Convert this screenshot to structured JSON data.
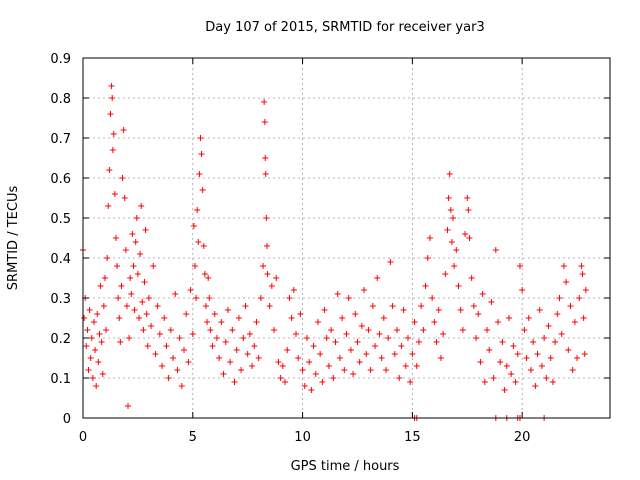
{
  "chart_data": {
    "type": "scatter",
    "title": "Day 107 of 2015, SRMTID for receiver yar3",
    "xlabel": "GPS time / hours",
    "ylabel": "SRMTID / TECUs",
    "xlim": [
      0,
      24
    ],
    "ylim": [
      0,
      0.9
    ],
    "xticks": [
      0,
      5,
      10,
      15,
      20
    ],
    "xtick_labels": [
      "0",
      "5",
      "10",
      "15",
      "20"
    ],
    "yticks": [
      0,
      0.1,
      0.2,
      0.3,
      0.4,
      0.5,
      0.6,
      0.7,
      0.8,
      0.9
    ],
    "ytick_labels": [
      "0",
      "0.1",
      "0.2",
      "0.3",
      "0.4",
      "0.5",
      "0.6",
      "0.7",
      "0.8",
      "0.9"
    ],
    "grid": true,
    "marker": "+",
    "color": "#ff0000",
    "series": [
      {
        "name": "SRMTID",
        "points": [
          [
            0.0,
            0.42
          ],
          [
            0.05,
            0.25
          ],
          [
            0.1,
            0.3
          ],
          [
            0.15,
            0.18
          ],
          [
            0.2,
            0.22
          ],
          [
            0.25,
            0.12
          ],
          [
            0.3,
            0.27
          ],
          [
            0.35,
            0.15
          ],
          [
            0.4,
            0.2
          ],
          [
            0.45,
            0.1
          ],
          [
            0.5,
            0.24
          ],
          [
            0.55,
            0.17
          ],
          [
            0.6,
            0.08
          ],
          [
            0.65,
            0.26
          ],
          [
            0.7,
            0.14
          ],
          [
            0.75,
            0.21
          ],
          [
            0.8,
            0.33
          ],
          [
            0.85,
            0.19
          ],
          [
            0.9,
            0.11
          ],
          [
            0.95,
            0.28
          ],
          [
            1.0,
            0.35
          ],
          [
            1.05,
            0.22
          ],
          [
            1.1,
            0.4
          ],
          [
            1.15,
            0.53
          ],
          [
            1.2,
            0.62
          ],
          [
            1.25,
            0.76
          ],
          [
            1.3,
            0.83
          ],
          [
            1.33,
            0.8
          ],
          [
            1.36,
            0.67
          ],
          [
            1.4,
            0.71
          ],
          [
            1.45,
            0.56
          ],
          [
            1.5,
            0.45
          ],
          [
            1.55,
            0.38
          ],
          [
            1.6,
            0.3
          ],
          [
            1.65,
            0.25
          ],
          [
            1.7,
            0.19
          ],
          [
            1.75,
            0.33
          ],
          [
            1.8,
            0.6
          ],
          [
            1.85,
            0.72
          ],
          [
            1.9,
            0.55
          ],
          [
            1.95,
            0.42
          ],
          [
            2.0,
            0.28
          ],
          [
            2.05,
            0.03
          ],
          [
            2.1,
            0.2
          ],
          [
            2.15,
            0.35
          ],
          [
            2.2,
            0.31
          ],
          [
            2.25,
            0.46
          ],
          [
            2.3,
            0.38
          ],
          [
            2.35,
            0.27
          ],
          [
            2.4,
            0.44
          ],
          [
            2.45,
            0.5
          ],
          [
            2.5,
            0.36
          ],
          [
            2.55,
            0.25
          ],
          [
            2.6,
            0.41
          ],
          [
            2.65,
            0.53
          ],
          [
            2.7,
            0.29
          ],
          [
            2.75,
            0.22
          ],
          [
            2.8,
            0.34
          ],
          [
            2.85,
            0.47
          ],
          [
            2.9,
            0.26
          ],
          [
            2.95,
            0.18
          ],
          [
            3.0,
            0.3
          ],
          [
            3.1,
            0.23
          ],
          [
            3.2,
            0.38
          ],
          [
            3.3,
            0.16
          ],
          [
            3.4,
            0.28
          ],
          [
            3.5,
            0.21
          ],
          [
            3.6,
            0.13
          ],
          [
            3.7,
            0.25
          ],
          [
            3.8,
            0.18
          ],
          [
            3.9,
            0.1
          ],
          [
            4.0,
            0.22
          ],
          [
            4.1,
            0.15
          ],
          [
            4.2,
            0.31
          ],
          [
            4.3,
            0.12
          ],
          [
            4.4,
            0.2
          ],
          [
            4.5,
            0.08
          ],
          [
            4.6,
            0.17
          ],
          [
            4.7,
            0.26
          ],
          [
            4.8,
            0.14
          ],
          [
            4.9,
            0.32
          ],
          [
            5.0,
            0.21
          ],
          [
            5.05,
            0.48
          ],
          [
            5.1,
            0.38
          ],
          [
            5.15,
            0.3
          ],
          [
            5.2,
            0.52
          ],
          [
            5.25,
            0.44
          ],
          [
            5.3,
            0.61
          ],
          [
            5.35,
            0.7
          ],
          [
            5.4,
            0.66
          ],
          [
            5.45,
            0.57
          ],
          [
            5.5,
            0.43
          ],
          [
            5.55,
            0.36
          ],
          [
            5.6,
            0.28
          ],
          [
            5.65,
            0.24
          ],
          [
            5.7,
            0.35
          ],
          [
            5.75,
            0.3
          ],
          [
            5.8,
            0.22
          ],
          [
            5.9,
            0.18
          ],
          [
            6.0,
            0.26
          ],
          [
            6.1,
            0.2
          ],
          [
            6.2,
            0.15
          ],
          [
            6.3,
            0.24
          ],
          [
            6.4,
            0.11
          ],
          [
            6.5,
            0.19
          ],
          [
            6.6,
            0.27
          ],
          [
            6.7,
            0.14
          ],
          [
            6.8,
            0.22
          ],
          [
            6.9,
            0.09
          ],
          [
            7.0,
            0.17
          ],
          [
            7.1,
            0.25
          ],
          [
            7.2,
            0.12
          ],
          [
            7.3,
            0.2
          ],
          [
            7.4,
            0.28
          ],
          [
            7.5,
            0.16
          ],
          [
            7.6,
            0.21
          ],
          [
            7.7,
            0.13
          ],
          [
            7.8,
            0.18
          ],
          [
            7.9,
            0.24
          ],
          [
            8.0,
            0.15
          ],
          [
            8.1,
            0.3
          ],
          [
            8.2,
            0.38
          ],
          [
            8.25,
            0.79
          ],
          [
            8.28,
            0.74
          ],
          [
            8.3,
            0.65
          ],
          [
            8.32,
            0.61
          ],
          [
            8.35,
            0.5
          ],
          [
            8.38,
            0.43
          ],
          [
            8.4,
            0.36
          ],
          [
            8.5,
            0.28
          ],
          [
            8.6,
            0.33
          ],
          [
            8.7,
            0.22
          ],
          [
            8.8,
            0.35
          ],
          [
            8.9,
            0.14
          ],
          [
            9.0,
            0.1
          ],
          [
            9.1,
            0.13
          ],
          [
            9.2,
            0.09
          ],
          [
            9.3,
            0.17
          ],
          [
            9.4,
            0.3
          ],
          [
            9.5,
            0.25
          ],
          [
            9.6,
            0.32
          ],
          [
            9.7,
            0.21
          ],
          [
            9.8,
            0.15
          ],
          [
            9.9,
            0.26
          ],
          [
            10.0,
            0.12
          ],
          [
            10.1,
            0.08
          ],
          [
            10.2,
            0.2
          ],
          [
            10.3,
            0.14
          ],
          [
            10.4,
            0.07
          ],
          [
            10.5,
            0.18
          ],
          [
            10.6,
            0.11
          ],
          [
            10.7,
            0.24
          ],
          [
            10.8,
            0.16
          ],
          [
            10.9,
            0.09
          ],
          [
            11.0,
            0.27
          ],
          [
            11.1,
            0.2
          ],
          [
            11.2,
            0.13
          ],
          [
            11.3,
            0.22
          ],
          [
            11.4,
            0.1
          ],
          [
            11.5,
            0.19
          ],
          [
            11.6,
            0.31
          ],
          [
            11.7,
            0.15
          ],
          [
            11.8,
            0.25
          ],
          [
            11.9,
            0.12
          ],
          [
            12.0,
            0.21
          ],
          [
            12.1,
            0.3
          ],
          [
            12.2,
            0.17
          ],
          [
            12.3,
            0.11
          ],
          [
            12.4,
            0.26
          ],
          [
            12.5,
            0.19
          ],
          [
            12.6,
            0.14
          ],
          [
            12.7,
            0.23
          ],
          [
            12.8,
            0.32
          ],
          [
            12.9,
            0.16
          ],
          [
            13.0,
            0.22
          ],
          [
            13.1,
            0.12
          ],
          [
            13.2,
            0.28
          ],
          [
            13.3,
            0.18
          ],
          [
            13.4,
            0.35
          ],
          [
            13.5,
            0.21
          ],
          [
            13.6,
            0.15
          ],
          [
            13.7,
            0.25
          ],
          [
            13.8,
            0.12
          ],
          [
            13.9,
            0.2
          ],
          [
            14.0,
            0.39
          ],
          [
            14.1,
            0.28
          ],
          [
            14.2,
            0.16
          ],
          [
            14.3,
            0.22
          ],
          [
            14.4,
            0.1
          ],
          [
            14.5,
            0.18
          ],
          [
            14.6,
            0.27
          ],
          [
            14.7,
            0.13
          ],
          [
            14.8,
            0.2
          ],
          [
            14.9,
            0.09
          ],
          [
            15.0,
            0.16
          ],
          [
            15.1,
            0.24
          ],
          [
            15.2,
            0.13
          ],
          [
            15.3,
            0.19
          ],
          [
            15.4,
            0.28
          ],
          [
            15.5,
            0.22
          ],
          [
            15.6,
            0.33
          ],
          [
            15.7,
            0.4
          ],
          [
            15.8,
            0.45
          ],
          [
            15.9,
            0.3
          ],
          [
            16.0,
            0.24
          ],
          [
            16.1,
            0.19
          ],
          [
            16.2,
            0.27
          ],
          [
            16.3,
            0.15
          ],
          [
            16.4,
            0.21
          ],
          [
            16.5,
            0.36
          ],
          [
            16.6,
            0.47
          ],
          [
            16.65,
            0.55
          ],
          [
            16.7,
            0.61
          ],
          [
            16.75,
            0.52
          ],
          [
            16.8,
            0.44
          ],
          [
            16.85,
            0.5
          ],
          [
            16.9,
            0.38
          ],
          [
            17.0,
            0.42
          ],
          [
            17.1,
            0.33
          ],
          [
            17.2,
            0.27
          ],
          [
            17.3,
            0.22
          ],
          [
            17.4,
            0.46
          ],
          [
            17.5,
            0.55
          ],
          [
            17.55,
            0.52
          ],
          [
            17.6,
            0.45
          ],
          [
            17.7,
            0.35
          ],
          [
            17.8,
            0.28
          ],
          [
            17.9,
            0.2
          ],
          [
            18.0,
            0.26
          ],
          [
            18.1,
            0.14
          ],
          [
            18.2,
            0.31
          ],
          [
            18.3,
            0.09
          ],
          [
            18.4,
            0.22
          ],
          [
            18.5,
            0.17
          ],
          [
            18.6,
            0.29
          ],
          [
            18.7,
            0.1
          ],
          [
            18.8,
            0.42
          ],
          [
            18.9,
            0.24
          ],
          [
            19.0,
            0.14
          ],
          [
            19.1,
            0.19
          ],
          [
            19.2,
            0.07
          ],
          [
            19.3,
            0.13
          ],
          [
            19.4,
            0.25
          ],
          [
            19.5,
            0.11
          ],
          [
            19.6,
            0.18
          ],
          [
            19.7,
            0.09
          ],
          [
            19.8,
            0.16
          ],
          [
            19.9,
            0.38
          ],
          [
            20.0,
            0.32
          ],
          [
            20.1,
            0.22
          ],
          [
            20.2,
            0.15
          ],
          [
            20.3,
            0.25
          ],
          [
            20.4,
            0.12
          ],
          [
            20.5,
            0.19
          ],
          [
            20.6,
            0.08
          ],
          [
            20.7,
            0.16
          ],
          [
            20.8,
            0.27
          ],
          [
            20.9,
            0.13
          ],
          [
            21.0,
            0.2
          ],
          [
            21.1,
            0.1
          ],
          [
            21.2,
            0.23
          ],
          [
            21.3,
            0.15
          ],
          [
            21.4,
            0.09
          ],
          [
            21.5,
            0.19
          ],
          [
            21.6,
            0.26
          ],
          [
            21.7,
            0.3
          ],
          [
            21.8,
            0.21
          ],
          [
            21.9,
            0.38
          ],
          [
            22.0,
            0.34
          ],
          [
            22.1,
            0.17
          ],
          [
            22.2,
            0.28
          ],
          [
            22.3,
            0.12
          ],
          [
            22.4,
            0.24
          ],
          [
            22.5,
            0.15
          ],
          [
            22.6,
            0.3
          ],
          [
            22.7,
            0.38
          ],
          [
            22.75,
            0.36
          ],
          [
            22.8,
            0.25
          ],
          [
            22.85,
            0.16
          ],
          [
            22.9,
            0.32
          ],
          [
            15.1,
            0.0
          ],
          [
            15.2,
            0.0
          ],
          [
            18.8,
            0.0
          ],
          [
            19.3,
            0.0
          ],
          [
            19.8,
            0.0
          ],
          [
            19.9,
            0.0
          ],
          [
            21.0,
            0.0
          ]
        ]
      }
    ]
  }
}
